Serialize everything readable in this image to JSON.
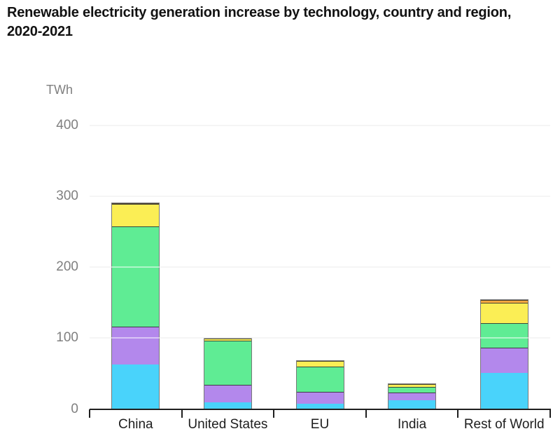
{
  "title": {
    "line1": "Renewable electricity generation increase by technology, country and region,",
    "line2": "2020-2021"
  },
  "chart_data": {
    "type": "bar",
    "stacked": true,
    "title": "Renewable electricity generation increase by technology, country and region, 2020-2021",
    "xlabel": "",
    "ylabel": "TWh",
    "ylim": [
      0,
      400
    ],
    "yticks": [
      0,
      100,
      200,
      300,
      400
    ],
    "grid": true,
    "legend_visible": false,
    "categories": [
      "China",
      "United States",
      "EU",
      "India",
      "Rest of World"
    ],
    "series": [
      {
        "name": "blue-bottom-segment",
        "color": "#49D3FB",
        "values": [
          63,
          9,
          7,
          12,
          51
        ]
      },
      {
        "name": "purple-segment",
        "color": "#B388EC",
        "values": [
          53,
          25,
          17,
          11.5,
          36
        ]
      },
      {
        "name": "green-segment",
        "color": "#5FEC94",
        "values": [
          142,
          62,
          36,
          8,
          34
        ]
      },
      {
        "name": "yellow-segment",
        "color": "#FBEE55",
        "values": [
          31,
          3.5,
          8,
          4,
          29
        ]
      },
      {
        "name": "orange-top-segment",
        "color": "#F2A73E",
        "values": [
          1,
          0,
          0,
          0,
          4
        ]
      }
    ]
  },
  "colors": {
    "axis": "#1f1f1f",
    "gridline": "#eaeaea",
    "tick_label": "#7f7f7f",
    "category_label": "#1e1e1e",
    "title": "#121212"
  }
}
